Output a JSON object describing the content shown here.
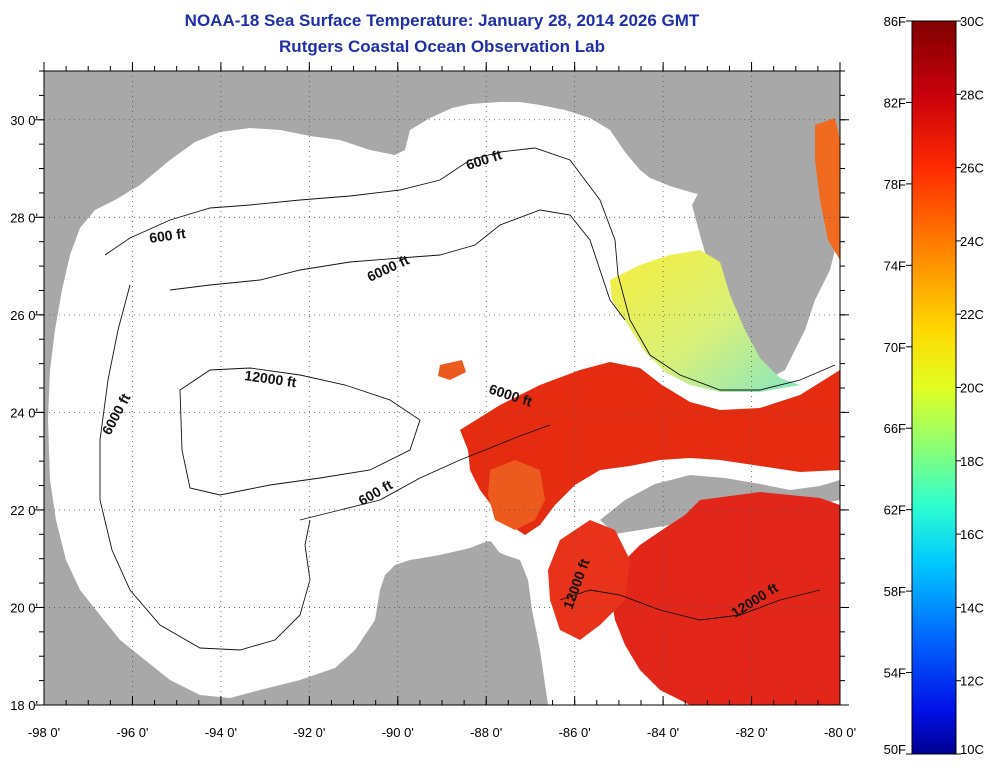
{
  "title": {
    "line1": "NOAA-18 Sea Surface Temperature:  January 28, 2014 2026 GMT",
    "line2": "Rutgers Coastal Ocean Observation Lab"
  },
  "map": {
    "lon_range": [
      -98,
      -80
    ],
    "lat_range": [
      18,
      31
    ],
    "x_ticks": [
      {
        "lon": -98,
        "label": "-98 0'"
      },
      {
        "lon": -96,
        "label": "-96 0'"
      },
      {
        "lon": -94,
        "label": "-94 0'"
      },
      {
        "lon": -92,
        "label": "-92 0'"
      },
      {
        "lon": -90,
        "label": "-90 0'"
      },
      {
        "lon": -88,
        "label": "-88 0'"
      },
      {
        "lon": -86,
        "label": "-86 0'"
      },
      {
        "lon": -84,
        "label": "-84 0'"
      },
      {
        "lon": -82,
        "label": "-82 0'"
      },
      {
        "lon": -80,
        "label": "-80 0'"
      }
    ],
    "y_ticks": [
      {
        "lat": 30,
        "label": "30 0'"
      },
      {
        "lat": 28,
        "label": "28 0'"
      },
      {
        "lat": 26,
        "label": "26 0'"
      },
      {
        "lat": 24,
        "label": "24 0'"
      },
      {
        "lat": 22,
        "label": "22 0'"
      },
      {
        "lat": 20,
        "label": "20 0'"
      },
      {
        "lat": 18,
        "label": "18 0'"
      }
    ],
    "contour_labels": [
      "600 ft",
      "600 ft",
      "600 ft",
      "6000 ft",
      "6000 ft",
      "6000 ft",
      "12000 ft",
      "12000 ft",
      "12000 ft"
    ],
    "colors": {
      "land": "#a8a8a8",
      "water": "#ffffff",
      "sst_hot": "#e8290e",
      "sst_warm": "#f0641a",
      "sst_mid": "#f2e23a",
      "sst_cool": "#7fe6ae"
    }
  },
  "colorbar": {
    "fahrenheit_labels": [
      "86F",
      "82F",
      "78F",
      "74F",
      "70F",
      "66F",
      "62F",
      "58F",
      "54F",
      "50F"
    ],
    "celsius_labels": [
      "30C",
      "28C",
      "26C",
      "24C",
      "22C",
      "20C",
      "18C",
      "16C",
      "14C",
      "12C",
      "10C"
    ],
    "min_f": 50,
    "max_f": 86,
    "min_c": 10,
    "max_c": 30
  }
}
